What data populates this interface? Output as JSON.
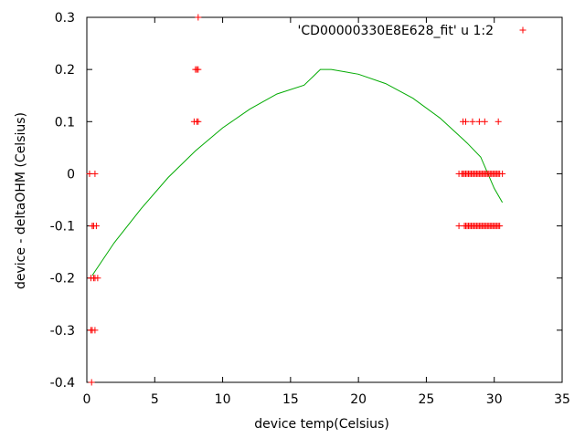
{
  "chart_data": {
    "type": "scatter",
    "xlabel": "device temp(Celsius)",
    "ylabel": "device - deltaOHM (Celsius)",
    "xlim": [
      0,
      35
    ],
    "ylim": [
      -0.4,
      0.3
    ],
    "x_ticks": [
      "0",
      "5",
      "10",
      "15",
      "20",
      "25",
      "30",
      "35"
    ],
    "y_ticks": [
      "-0.4",
      "-0.3",
      "-0.2",
      "-0.1",
      "0",
      "0.1",
      "0.2",
      "0.3"
    ],
    "grid": false,
    "legend_position": "top-right",
    "colors": {
      "points": "#ff0000",
      "fit": "#00aa00",
      "axes": "#000000"
    },
    "series": [
      {
        "name": "'CD00000330E8E628_fit' u 1:2",
        "kind": "points",
        "x": [
          0.2,
          0.6,
          0.4,
          0.4,
          0.5,
          0.7,
          0.3,
          0.5,
          0.6,
          0.8,
          0.3,
          0.6,
          0.4,
          0.35,
          7.9,
          8.1,
          8.2,
          8.0,
          8.2,
          8.1,
          8.2,
          27.4,
          27.6,
          27.7,
          27.8,
          27.9,
          28.0,
          28.1,
          28.2,
          28.3,
          28.4,
          28.5,
          28.6,
          28.7,
          28.8,
          28.9,
          29.0,
          29.1,
          29.2,
          29.3,
          29.4,
          29.5,
          29.6,
          29.7,
          29.8,
          29.9,
          30.0,
          30.1,
          30.2,
          30.3,
          30.4,
          30.6,
          27.4,
          27.8,
          27.9,
          28.0,
          28.1,
          28.2,
          28.3,
          28.4,
          28.5,
          28.6,
          28.7,
          28.8,
          28.9,
          29.0,
          29.1,
          29.2,
          29.3,
          29.4,
          29.5,
          29.6,
          29.7,
          29.8,
          29.9,
          30.0,
          30.1,
          30.2,
          30.3,
          30.4,
          27.7,
          27.9,
          28.4,
          28.9,
          29.3,
          30.3
        ],
        "y": [
          0,
          0,
          -0.1,
          -0.1,
          -0.1,
          -0.1,
          -0.2,
          -0.2,
          -0.2,
          -0.2,
          -0.3,
          -0.3,
          -0.3,
          -0.4,
          0.1,
          0.1,
          0.1,
          0.2,
          0.2,
          0.2,
          0.3,
          0,
          0,
          0,
          0,
          0,
          0,
          0,
          0,
          0,
          0,
          0,
          0,
          0,
          0,
          0,
          0,
          0,
          0,
          0,
          0,
          0,
          0,
          0,
          0,
          0,
          0,
          0,
          0,
          0,
          0,
          0,
          -0.1,
          -0.1,
          -0.1,
          -0.1,
          -0.1,
          -0.1,
          -0.1,
          -0.1,
          -0.1,
          -0.1,
          -0.1,
          -0.1,
          -0.1,
          -0.1,
          -0.1,
          -0.1,
          -0.1,
          -0.1,
          -0.1,
          -0.1,
          -0.1,
          -0.1,
          -0.1,
          -0.1,
          -0.1,
          -0.1,
          -0.1,
          -0.1,
          0.1,
          0.1,
          0.1,
          0.1,
          0.1,
          0.1
        ]
      },
      {
        "kind": "line",
        "x": [
          0.4,
          2,
          4,
          6,
          8,
          10,
          12,
          14,
          16,
          17.2,
          18,
          20,
          22,
          24,
          26,
          28,
          29,
          30,
          30.6
        ],
        "y": [
          -0.195,
          -0.133,
          -0.067,
          -0.007,
          0.044,
          0.088,
          0.124,
          0.153,
          0.17,
          0.2,
          0.2,
          0.191,
          0.173,
          0.145,
          0.107,
          0.059,
          0.032,
          -0.028,
          -0.055
        ]
      }
    ]
  }
}
